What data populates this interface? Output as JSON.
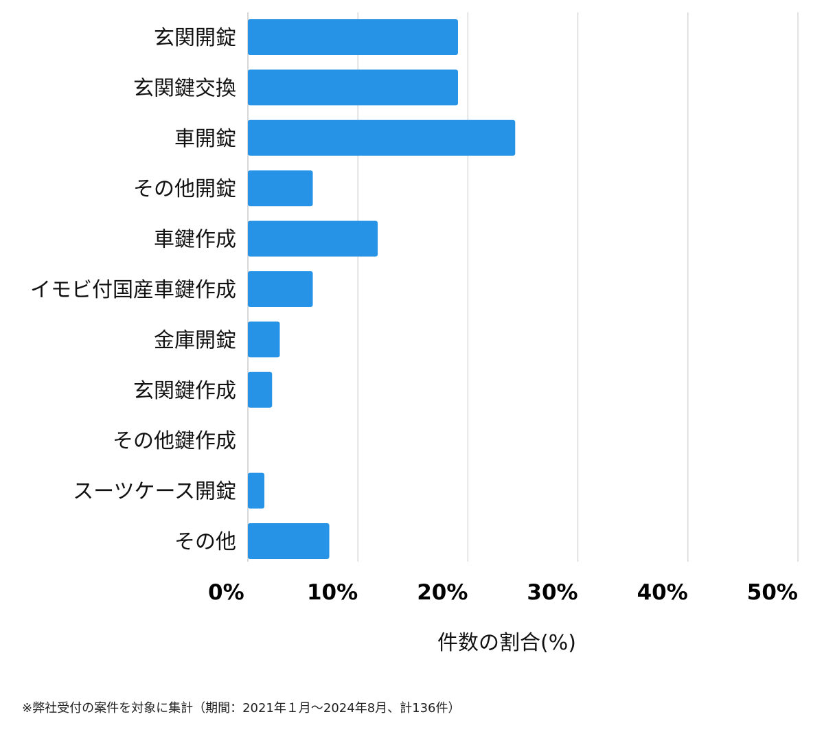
{
  "chart_data": {
    "type": "bar",
    "orientation": "horizontal",
    "categories": [
      "玄関開錠",
      "玄関鍵交換",
      "車開錠",
      "その他開錠",
      "車鍵作成",
      "イモビ付国産車鍵作成",
      "金庫開錠",
      "玄関鍵作成",
      "その他鍵作成",
      "スーツケース開錠",
      "その他"
    ],
    "values": [
      19.1,
      19.1,
      24.3,
      5.9,
      11.8,
      5.9,
      2.9,
      2.2,
      0,
      1.5,
      7.4
    ],
    "xlabel": "件数の割合(%)",
    "xticks": [
      "0%",
      "10%",
      "20%",
      "30%",
      "40%",
      "50%"
    ],
    "xlim": [
      0,
      50
    ],
    "grid": true,
    "bar_color": "#2793e6",
    "grid_color": "#cfcfcf"
  },
  "footnote": "※弊社受付の案件を対象に集計（期間：2021年１月～2024年8月、計136件）"
}
